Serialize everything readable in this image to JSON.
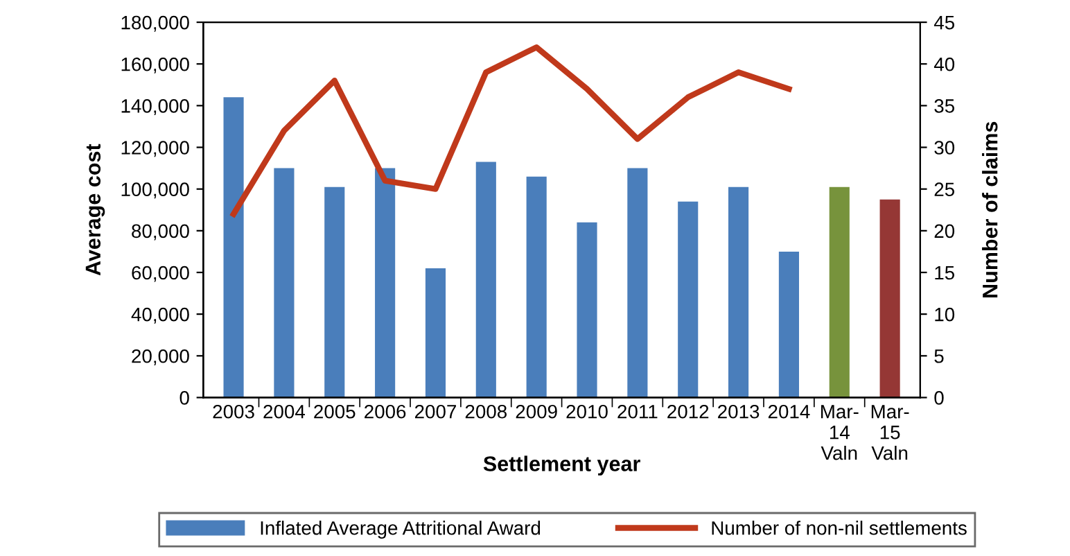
{
  "chart_data": {
    "type": "bar",
    "xlabel": "Settlement year",
    "ylabel": "Average cost",
    "y2label": "Number of claims",
    "categories": [
      "2003",
      "2004",
      "2005",
      "2006",
      "2007",
      "2008",
      "2009",
      "2010",
      "2011",
      "2012",
      "2013",
      "2014",
      "Mar-\n14\nValn",
      "Mar-\n15\nValn"
    ],
    "series": [
      {
        "name": "Inflated Average Attritional Award",
        "color": "#4a7ebb",
        "colors": [
          "#4a7ebb",
          "#4a7ebb",
          "#4a7ebb",
          "#4a7ebb",
          "#4a7ebb",
          "#4a7ebb",
          "#4a7ebb",
          "#4a7ebb",
          "#4a7ebb",
          "#4a7ebb",
          "#4a7ebb",
          "#4a7ebb",
          "#77933c",
          "#953735"
        ],
        "values": [
          144000,
          110000,
          101000,
          110000,
          62000,
          113000,
          106000,
          84000,
          110000,
          94000,
          101000,
          70000,
          101000,
          95000
        ]
      },
      {
        "name": "Number of non-nil settlements",
        "type": "line",
        "axis": "y2",
        "color": "#c0391b",
        "values": [
          22,
          32,
          38,
          26,
          25,
          39,
          42,
          37,
          31,
          36,
          39,
          37,
          null,
          null
        ]
      }
    ],
    "ylim": [
      0,
      180000
    ],
    "yticks": [
      {
        "value": 0,
        "label": "0"
      },
      {
        "value": 20000,
        "label": "20,000"
      },
      {
        "value": 40000,
        "label": "40,000"
      },
      {
        "value": 60000,
        "label": "60,000"
      },
      {
        "value": 80000,
        "label": "80,000"
      },
      {
        "value": 100000,
        "label": "100,000"
      },
      {
        "value": 120000,
        "label": "120,000"
      },
      {
        "value": 140000,
        "label": "140,000"
      },
      {
        "value": 160000,
        "label": "160,000"
      },
      {
        "value": 180000,
        "label": "180,000"
      }
    ],
    "y2lim": [
      0,
      45
    ],
    "y2ticks": [
      0,
      5,
      10,
      15,
      20,
      25,
      30,
      35,
      40,
      45
    ],
    "grid": false,
    "legend": "bottom",
    "marker": "none",
    "line_style": "solid"
  }
}
